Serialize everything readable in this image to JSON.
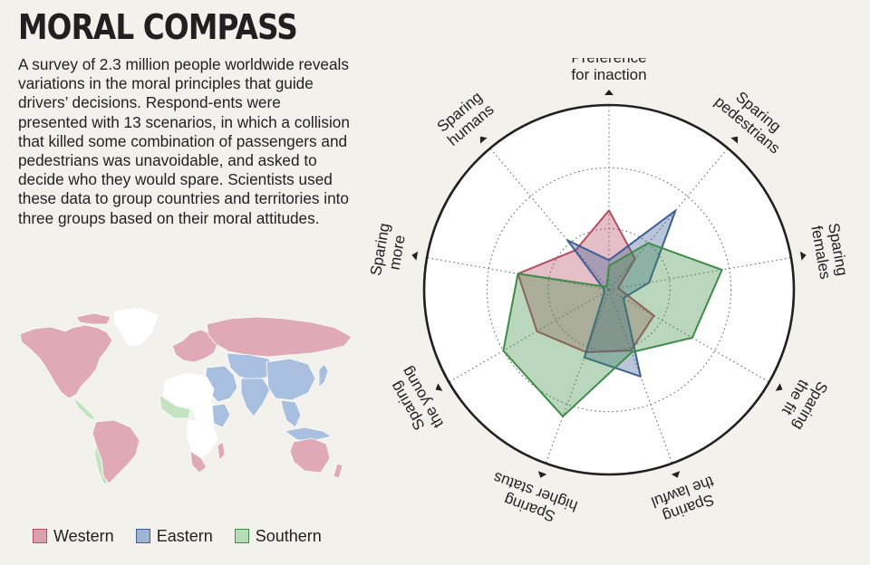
{
  "header": {
    "title": "MORAL COMPASS",
    "intro": "A survey of 2.3 million people worldwide reveals variations in the moral principles that guide drivers’ decisions. Respond-ents were presented with 13 scenarios, in which a collision that killed some combination of passengers and pedestrians was unavoidable, and asked to decide who they would spare. Scientists used these data to group countries and territories into three groups based on their moral attitudes."
  },
  "legend": [
    {
      "label": "Western",
      "fill": "#d9a0ad",
      "stroke": "#b34d64"
    },
    {
      "label": "Eastern",
      "fill": "#9fb3d5",
      "stroke": "#3d5f94"
    },
    {
      "label": "Southern",
      "fill": "#b8dcb6",
      "stroke": "#3f8c48"
    }
  ],
  "map": {
    "palette": {
      "western": "#dfa9b6",
      "eastern": "#a9bfdf",
      "southern": "#c4e3c0",
      "unclassified": "#ffffff"
    }
  },
  "chart_data": {
    "type": "radar",
    "axes": [
      {
        "line1": "Preference",
        "line2": "for inaction"
      },
      {
        "line1": "Sparing",
        "line2": "pedestrians"
      },
      {
        "line1": "Sparing",
        "line2": "females"
      },
      {
        "line1": "Sparing",
        "line2": "the fit"
      },
      {
        "line1": "Sparing",
        "line2": "the lawful"
      },
      {
        "line1": "Sparing",
        "line2": "higher status"
      },
      {
        "line1": "Sparing",
        "line2": "the young"
      },
      {
        "line1": "Sparing",
        "line2": "more"
      },
      {
        "line1": "Sparing",
        "line2": "humans"
      }
    ],
    "range": [
      0,
      1
    ],
    "rings": [
      0.33,
      0.66
    ],
    "series": [
      {
        "name": "Western",
        "values": [
          0.43,
          0.22,
          0.05,
          0.28,
          0.35,
          0.36,
          0.45,
          0.5,
          0.28
        ],
        "fill": "#b34d64",
        "stroke": "#b34d64"
      },
      {
        "name": "Eastern",
        "values": [
          0.16,
          0.56,
          0.22,
          0.09,
          0.5,
          0.39,
          0.03,
          0.03,
          0.35
        ],
        "fill": "#3d5f94",
        "stroke": "#3d5f94"
      },
      {
        "name": "Southern",
        "values": [
          0.13,
          0.33,
          0.62,
          0.52,
          0.36,
          0.73,
          0.66,
          0.5,
          0.02
        ],
        "fill": "#3f8c48",
        "stroke": "#3f8c48"
      }
    ]
  }
}
